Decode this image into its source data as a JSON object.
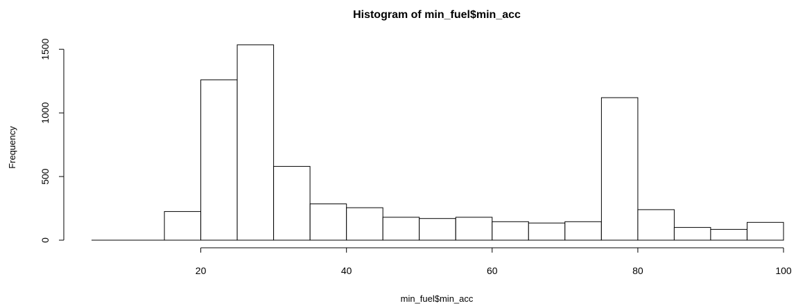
{
  "chart_data": {
    "type": "bar",
    "title": "Histogram of min_fuel$min_acc",
    "xlabel": "min_fuel$min_acc",
    "ylabel": "Frequency",
    "xlim": [
      5,
      100
    ],
    "ylim": [
      0,
      1550
    ],
    "x_ticks": [
      "20",
      "40",
      "60",
      "80",
      "100"
    ],
    "x_tick_values": [
      20,
      40,
      60,
      80,
      100
    ],
    "y_ticks": [
      "0",
      "500",
      "1000",
      "1500"
    ],
    "y_tick_values": [
      0,
      500,
      1000,
      1500
    ],
    "grid": false,
    "bins": [
      {
        "start": 5,
        "end": 10,
        "count": 0
      },
      {
        "start": 10,
        "end": 15,
        "count": 0
      },
      {
        "start": 15,
        "end": 20,
        "count": 225
      },
      {
        "start": 20,
        "end": 25,
        "count": 1260
      },
      {
        "start": 25,
        "end": 30,
        "count": 1535
      },
      {
        "start": 30,
        "end": 35,
        "count": 580
      },
      {
        "start": 35,
        "end": 40,
        "count": 285
      },
      {
        "start": 40,
        "end": 45,
        "count": 255
      },
      {
        "start": 45,
        "end": 50,
        "count": 180
      },
      {
        "start": 50,
        "end": 55,
        "count": 170
      },
      {
        "start": 55,
        "end": 60,
        "count": 180
      },
      {
        "start": 60,
        "end": 65,
        "count": 145
      },
      {
        "start": 65,
        "end": 70,
        "count": 135
      },
      {
        "start": 70,
        "end": 75,
        "count": 145
      },
      {
        "start": 75,
        "end": 80,
        "count": 1120
      },
      {
        "start": 80,
        "end": 85,
        "count": 240
      },
      {
        "start": 85,
        "end": 90,
        "count": 100
      },
      {
        "start": 90,
        "end": 95,
        "count": 85
      },
      {
        "start": 95,
        "end": 100,
        "count": 140
      }
    ]
  }
}
